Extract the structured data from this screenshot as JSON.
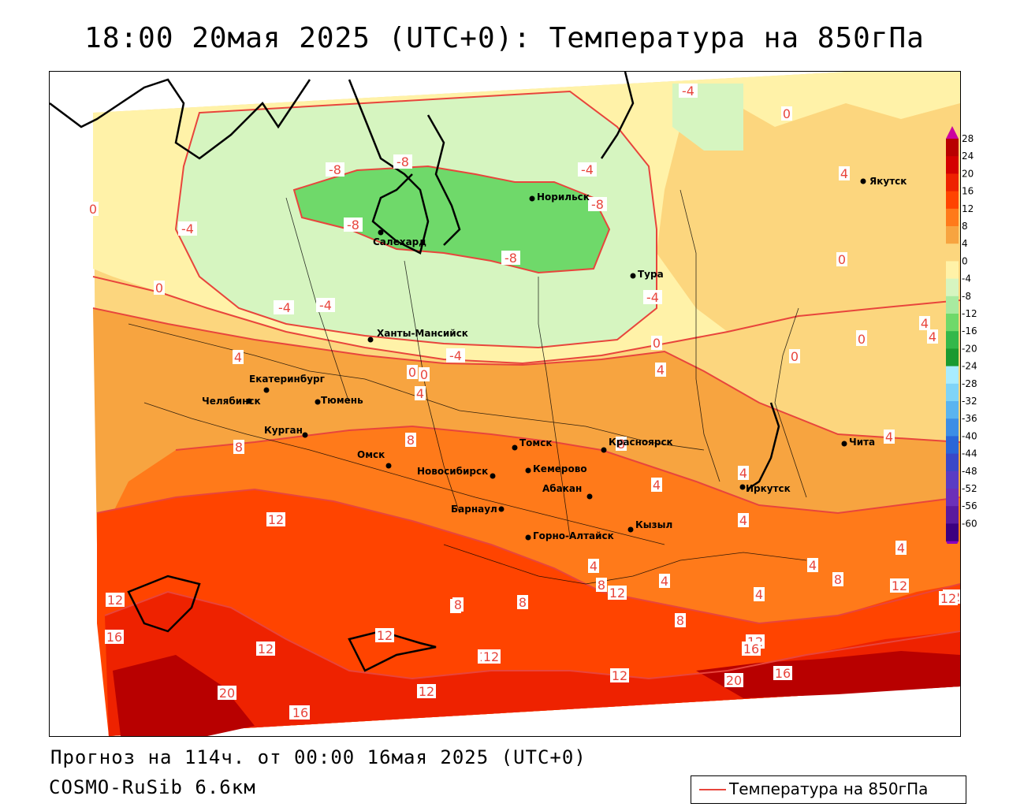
{
  "title": "18:00 20мая 2025 (UTC+0): Температура на 850гПа",
  "forecast_text": "Прогноз на 114ч. от 00:00 16мая 2025 (UTC+0)",
  "model_text": "COSMO-RuSib 6.6км",
  "legend": {
    "label": "Температура на 850гПа",
    "line_color": "#e8453c"
  },
  "colorbar": {
    "ticks": [
      "28",
      "24",
      "20",
      "16",
      "12",
      "8",
      "4",
      "0",
      "-4",
      "-8",
      "-12",
      "-16",
      "-20",
      "-24",
      "-28",
      "-32",
      "-36",
      "-40",
      "-44",
      "-48",
      "-52",
      "-56",
      "-60"
    ],
    "colors": [
      "#b80000",
      "#d40000",
      "#ee2200",
      "#ff4400",
      "#ff7a1a",
      "#f7a440",
      "#fcd67e",
      "#fff2a8",
      "#d6f5c0",
      "#a8eaa0",
      "#6fd96a",
      "#33b84a",
      "#1a9a30",
      "#a8ecff",
      "#7fd4f7",
      "#5ab4f0",
      "#3c8ee6",
      "#2a66d8",
      "#3a48c8",
      "#5a3cc4",
      "#6c30b8",
      "#5a1a9e",
      "#3c0080"
    ]
  },
  "cities": [
    {
      "name": "Якутск"
    },
    {
      "name": "Норильск"
    },
    {
      "name": "Салехард"
    },
    {
      "name": "Тура"
    },
    {
      "name": "Ханты-Мансийск"
    },
    {
      "name": "Екатеринбург"
    },
    {
      "name": "Тюмень"
    },
    {
      "name": "Челябинск"
    },
    {
      "name": "Курган"
    },
    {
      "name": "Омск"
    },
    {
      "name": "Новосибирск"
    },
    {
      "name": "Томск"
    },
    {
      "name": "Кемерово"
    },
    {
      "name": "Красноярск"
    },
    {
      "name": "Абакан"
    },
    {
      "name": "Барнаул"
    },
    {
      "name": "Горно-Алтайск"
    },
    {
      "name": "Кызыл"
    },
    {
      "name": "Иркутск"
    },
    {
      "name": "Чита"
    }
  ],
  "isotherm_labels": [
    "-4",
    "0",
    "-8",
    "-8",
    "-4",
    "-8",
    "-4",
    "-8",
    "-8",
    "0",
    "-4",
    "4",
    "0",
    "4",
    "0",
    "0",
    "-4",
    "-4",
    "-4",
    "0",
    "0",
    "4",
    "4",
    "8",
    "4",
    "8",
    "8",
    "4",
    "4",
    "4",
    "4",
    "12",
    "12",
    "16",
    "20",
    "16",
    "12",
    "12",
    "8",
    "8",
    "12",
    "12",
    "8",
    "4",
    "8",
    "12",
    "12",
    "20",
    "16",
    "16",
    "12",
    "12",
    "12",
    "8",
    "4",
    "12",
    "16",
    "12",
    "-4",
    "0",
    "4",
    "8",
    "4",
    "4",
    "0",
    "0",
    "4"
  ]
}
